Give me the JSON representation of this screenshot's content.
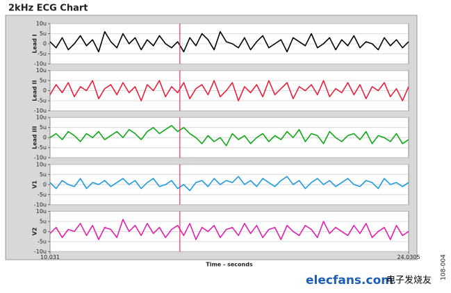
{
  "chart_data": {
    "type": "line",
    "title": "2kHz ECG Chart",
    "stacked_panels": true,
    "xlabel": "Time - seconds",
    "x": [
      10.031,
      10.268,
      10.506,
      10.743,
      10.98,
      11.217,
      11.455,
      11.692,
      11.929,
      12.166,
      12.404,
      12.641,
      12.878,
      13.116,
      13.353,
      13.59,
      13.827,
      14.065,
      14.302,
      14.539,
      14.777,
      15.014,
      15.251,
      15.488,
      15.726,
      15.963,
      16.2,
      16.437,
      16.675,
      16.912,
      17.149,
      17.387,
      17.624,
      17.861,
      18.098,
      18.336,
      18.573,
      18.81,
      19.048,
      19.285,
      19.522,
      19.759,
      19.997,
      20.234,
      20.471,
      20.708,
      20.946,
      21.183,
      21.42,
      21.658,
      21.895,
      22.132,
      22.369,
      22.607,
      22.844,
      23.081,
      23.318,
      23.556,
      23.793,
      24.0305
    ],
    "xlim": [
      10.031,
      24.0305
    ],
    "xticks": [
      10.031,
      24.0305
    ],
    "ylim": [
      -10,
      10
    ],
    "yticks": [
      {
        "value": -10,
        "label": "-10u"
      },
      {
        "value": -5,
        "label": "-5u"
      },
      0,
      {
        "value": 5,
        "label": "5u"
      },
      {
        "value": 10,
        "label": "10u"
      }
    ],
    "grid": true,
    "cursor_x": 15.1,
    "cursor_color": "#e0306a",
    "series": [
      {
        "name": "Lead I",
        "color": "#000000",
        "values": [
          1,
          -2,
          3,
          -3,
          0,
          4,
          -1,
          2,
          -4,
          6,
          1,
          -2,
          5,
          0,
          3,
          -3,
          2,
          -1,
          4,
          0,
          -2,
          1,
          -4,
          3,
          -1,
          5,
          2,
          -3,
          6,
          1,
          0,
          -2,
          3,
          -3,
          1,
          4,
          -2,
          0,
          2,
          -4,
          3,
          1,
          -1,
          5,
          -2,
          0,
          3,
          -3,
          2,
          -1,
          4,
          -2,
          1,
          0,
          -3,
          3,
          -1,
          2,
          -2,
          1
        ]
      },
      {
        "name": "Lead II",
        "color": "#e8203c",
        "values": [
          -2,
          3,
          -1,
          4,
          -3,
          2,
          0,
          5,
          -4,
          1,
          3,
          -2,
          4,
          -1,
          2,
          -5,
          3,
          0,
          5,
          -3,
          2,
          -1,
          4,
          -4,
          1,
          3,
          -2,
          5,
          -3,
          0,
          4,
          -5,
          2,
          -1,
          3,
          -3,
          5,
          -2,
          1,
          4,
          -4,
          2,
          0,
          3,
          -2,
          5,
          -3,
          1,
          -1,
          4,
          -2,
          3,
          -4,
          2,
          0,
          4,
          -3,
          1,
          -5,
          2
        ]
      },
      {
        "name": "Lead III",
        "color": "#10a818",
        "values": [
          0,
          2,
          -1,
          3,
          1,
          -2,
          2,
          0,
          3,
          -1,
          1,
          3,
          0,
          4,
          2,
          -1,
          3,
          5,
          2,
          4,
          6,
          3,
          5,
          2,
          0,
          -3,
          1,
          -2,
          0,
          -4,
          2,
          -1,
          1,
          -3,
          0,
          2,
          -2,
          1,
          -1,
          3,
          0,
          4,
          -2,
          2,
          1,
          -3,
          3,
          0,
          -2,
          1,
          2,
          -1,
          3,
          -3,
          1,
          0,
          -2,
          2,
          -3,
          -1
        ]
      },
      {
        "name": "V1",
        "color": "#1e9ae0",
        "values": [
          1,
          -2,
          2,
          0,
          -1,
          3,
          -2,
          1,
          0,
          2,
          -1,
          1,
          3,
          0,
          2,
          -2,
          1,
          3,
          -1,
          0,
          2,
          -2,
          0,
          -3,
          1,
          2,
          -1,
          3,
          0,
          2,
          1,
          4,
          0,
          2,
          -1,
          3,
          1,
          -1,
          2,
          4,
          0,
          2,
          -2,
          1,
          3,
          0,
          2,
          -1,
          1,
          3,
          0,
          -1,
          2,
          1,
          -2,
          3,
          0,
          1,
          -1,
          1
        ]
      },
      {
        "name": "V2",
        "color": "#e020b0",
        "values": [
          -1,
          2,
          -3,
          1,
          0,
          4,
          -2,
          3,
          -4,
          2,
          1,
          -3,
          6,
          0,
          3,
          -2,
          4,
          -1,
          2,
          -3,
          1,
          3,
          -2,
          4,
          -4,
          2,
          0,
          3,
          -3,
          1,
          2,
          -2,
          4,
          -1,
          3,
          -3,
          1,
          2,
          -4,
          3,
          0,
          -2,
          3,
          1,
          -3,
          5,
          -1,
          2,
          0,
          -2,
          3,
          -1,
          4,
          -3,
          0,
          2,
          -4,
          3,
          -2,
          0
        ]
      }
    ]
  },
  "figure_id": "108-004",
  "watermark": {
    "site": "elecfans.com",
    "name": "电子发烧友"
  }
}
